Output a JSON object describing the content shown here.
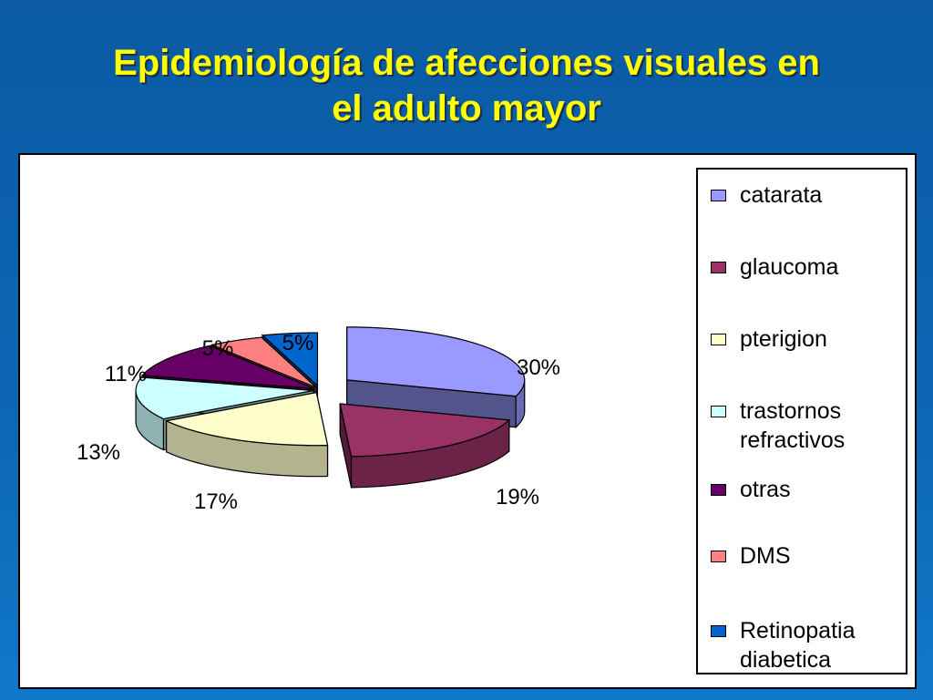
{
  "title": {
    "line1": "Epidemiología de afecciones visuales en",
    "line2": "el adulto mayor"
  },
  "chart_data": {
    "type": "pie",
    "exploded": true,
    "three_d": true,
    "legend_position": "right",
    "slices": [
      {
        "label": "catarata",
        "value": 30,
        "label_text": "30%",
        "color": "#9999ff"
      },
      {
        "label": "glaucoma",
        "value": 19,
        "label_text": "19%",
        "color": "#993366"
      },
      {
        "label": "pterigion",
        "value": 17,
        "label_text": "17%",
        "color": "#ffffcc"
      },
      {
        "label": "trastornos refractivos",
        "value": 13,
        "label_text": "13%",
        "color": "#ccffff"
      },
      {
        "label": "otras",
        "value": 11,
        "label_text": "11%",
        "color": "#660066"
      },
      {
        "label": "DMS",
        "value": 5,
        "label_text": "5%",
        "color": "#ff8080"
      },
      {
        "label": "Retinopatia diabetica",
        "value": 5,
        "label_text": "5%",
        "color": "#0066cc"
      }
    ],
    "legend": {
      "items": [
        {
          "lines": [
            "catarata"
          ],
          "color": "#9999ff"
        },
        {
          "lines": [
            "glaucoma"
          ],
          "color": "#993366"
        },
        {
          "lines": [
            "pterigion"
          ],
          "color": "#ffffcc"
        },
        {
          "lines": [
            "trastornos",
            "refractivos"
          ],
          "color": "#ccffff"
        },
        {
          "lines": [
            "otras"
          ],
          "color": "#660066"
        },
        {
          "lines": [
            "DMS"
          ],
          "color": "#ff8080"
        },
        {
          "lines": [
            "Retinopatia",
            "diabetica"
          ],
          "color": "#0066cc"
        }
      ]
    }
  }
}
